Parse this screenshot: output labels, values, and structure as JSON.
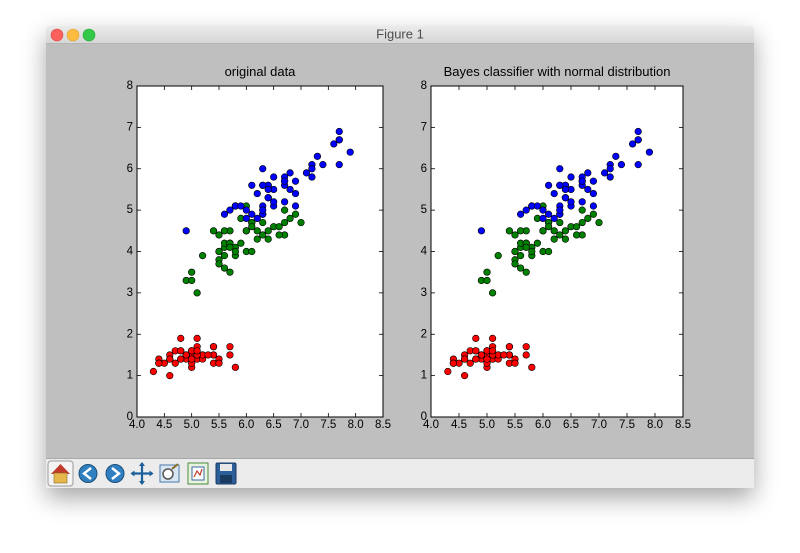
{
  "window_title": "Figure 1",
  "chart_data": [
    {
      "type": "scatter",
      "title": "original data",
      "xlim": [
        4.0,
        8.5
      ],
      "ylim": [
        0,
        8
      ],
      "xticks": [
        {
          "value": 4.0,
          "label": "4.0"
        },
        4.5,
        {
          "value": 5.0,
          "label": "5.0"
        },
        5.5,
        {
          "value": 6.0,
          "label": "6.0"
        },
        6.5,
        {
          "value": 7.0,
          "label": "7.0"
        },
        7.5,
        {
          "value": 8.0,
          "label": "8.0"
        },
        8.5
      ],
      "yticks": [
        0,
        1,
        2,
        3,
        4,
        5,
        6,
        7,
        8
      ],
      "series": [
        {
          "color": "#ff0000",
          "x": [
            5.1,
            4.9,
            4.7,
            4.6,
            5.0,
            5.4,
            4.6,
            5.0,
            4.4,
            4.9,
            5.4,
            4.8,
            4.8,
            4.3,
            5.8,
            5.7,
            5.4,
            5.1,
            5.7,
            5.1,
            5.4,
            5.1,
            4.6,
            5.1,
            4.8,
            5.0,
            5.0,
            5.2,
            5.2,
            4.7,
            4.8,
            5.4,
            5.2,
            5.5,
            4.9,
            5.0,
            5.5,
            4.9,
            4.4,
            5.1,
            5.0,
            4.5,
            4.4,
            5.0,
            5.1,
            4.8,
            5.1,
            4.6,
            5.3,
            5.0
          ],
          "y": [
            1.4,
            1.4,
            1.3,
            1.5,
            1.4,
            1.7,
            1.4,
            1.5,
            1.4,
            1.5,
            1.5,
            1.6,
            1.4,
            1.1,
            1.2,
            1.5,
            1.3,
            1.4,
            1.7,
            1.5,
            1.7,
            1.5,
            1.0,
            1.7,
            1.9,
            1.6,
            1.6,
            1.5,
            1.4,
            1.6,
            1.6,
            1.5,
            1.5,
            1.4,
            1.5,
            1.2,
            1.3,
            1.5,
            1.3,
            1.5,
            1.3,
            1.3,
            1.3,
            1.6,
            1.9,
            1.4,
            1.6,
            1.4,
            1.5,
            1.4
          ]
        },
        {
          "color": "#008000",
          "x": [
            7.0,
            6.4,
            6.9,
            5.5,
            6.5,
            5.7,
            6.3,
            4.9,
            6.6,
            5.2,
            5.0,
            5.9,
            6.0,
            6.1,
            5.6,
            6.7,
            5.6,
            5.8,
            6.2,
            5.6,
            5.9,
            6.1,
            6.3,
            6.1,
            6.4,
            6.6,
            6.8,
            6.7,
            6.0,
            5.7,
            5.5,
            5.5,
            5.8,
            6.0,
            5.4,
            6.0,
            6.7,
            6.3,
            5.6,
            5.5,
            5.5,
            6.1,
            5.8,
            5.0,
            5.6,
            5.7,
            5.7,
            6.2,
            5.1,
            5.7
          ],
          "y": [
            4.7,
            4.5,
            4.9,
            4.0,
            4.6,
            4.5,
            4.7,
            3.3,
            4.6,
            3.9,
            3.5,
            4.2,
            4.0,
            4.7,
            3.6,
            4.4,
            4.5,
            4.1,
            4.5,
            3.9,
            4.8,
            4.0,
            4.9,
            4.7,
            4.3,
            4.4,
            4.8,
            5.0,
            4.5,
            3.5,
            3.8,
            3.7,
            3.9,
            5.1,
            4.5,
            4.5,
            4.7,
            4.4,
            4.1,
            4.0,
            4.4,
            4.6,
            4.0,
            3.3,
            4.2,
            4.2,
            4.2,
            4.3,
            3.0,
            4.1
          ]
        },
        {
          "color": "#0000ff",
          "x": [
            6.3,
            5.8,
            7.1,
            6.3,
            6.5,
            7.6,
            4.9,
            7.3,
            6.7,
            7.2,
            6.5,
            6.4,
            6.8,
            5.7,
            5.8,
            6.4,
            6.5,
            7.7,
            7.7,
            6.0,
            6.9,
            5.6,
            7.7,
            6.3,
            6.7,
            7.2,
            6.2,
            6.1,
            6.4,
            7.2,
            7.4,
            7.9,
            6.4,
            6.3,
            6.1,
            7.7,
            6.3,
            6.4,
            6.0,
            6.9,
            6.7,
            6.9,
            5.8,
            6.8,
            6.7,
            6.7,
            6.3,
            6.5,
            6.2,
            5.9
          ],
          "y": [
            6.0,
            5.1,
            5.9,
            5.6,
            5.8,
            6.6,
            4.5,
            6.3,
            5.8,
            6.1,
            5.1,
            5.3,
            5.5,
            5.0,
            5.1,
            5.3,
            5.5,
            6.7,
            6.9,
            5.0,
            5.7,
            4.9,
            6.7,
            4.9,
            5.7,
            6.0,
            4.8,
            4.9,
            5.6,
            5.8,
            6.1,
            6.4,
            5.6,
            5.1,
            5.6,
            6.1,
            5.6,
            5.5,
            4.8,
            5.4,
            5.6,
            5.1,
            5.1,
            5.9,
            5.7,
            5.2,
            5.0,
            5.2,
            5.4,
            5.1
          ]
        }
      ]
    },
    {
      "type": "scatter",
      "title": "Bayes classifier with normal distribution",
      "xlim": [
        4.0,
        8.5
      ],
      "ylim": [
        0,
        8
      ],
      "xticks": [
        {
          "value": 4.0,
          "label": "4.0"
        },
        4.5,
        {
          "value": 5.0,
          "label": "5.0"
        },
        5.5,
        {
          "value": 6.0,
          "label": "6.0"
        },
        6.5,
        {
          "value": 7.0,
          "label": "7.0"
        },
        7.5,
        {
          "value": 8.0,
          "label": "8.0"
        },
        8.5
      ],
      "yticks": [
        0,
        1,
        2,
        3,
        4,
        5,
        6,
        7,
        8
      ],
      "series": [
        {
          "color": "#ff0000",
          "x": [
            5.1,
            4.9,
            4.7,
            4.6,
            5.0,
            5.4,
            4.6,
            5.0,
            4.4,
            4.9,
            5.4,
            4.8,
            4.8,
            4.3,
            5.8,
            5.7,
            5.4,
            5.1,
            5.7,
            5.1,
            5.4,
            5.1,
            4.6,
            5.1,
            4.8,
            5.0,
            5.0,
            5.2,
            5.2,
            4.7,
            4.8,
            5.4,
            5.2,
            5.5,
            4.9,
            5.0,
            5.5,
            4.9,
            4.4,
            5.1,
            5.0,
            4.5,
            4.4,
            5.0,
            5.1,
            4.8,
            5.1,
            4.6,
            5.3,
            5.0
          ],
          "y": [
            1.4,
            1.4,
            1.3,
            1.5,
            1.4,
            1.7,
            1.4,
            1.5,
            1.4,
            1.5,
            1.5,
            1.6,
            1.4,
            1.1,
            1.2,
            1.5,
            1.3,
            1.4,
            1.7,
            1.5,
            1.7,
            1.5,
            1.0,
            1.7,
            1.9,
            1.6,
            1.6,
            1.5,
            1.4,
            1.6,
            1.6,
            1.5,
            1.5,
            1.4,
            1.5,
            1.2,
            1.3,
            1.5,
            1.3,
            1.5,
            1.3,
            1.3,
            1.3,
            1.6,
            1.9,
            1.4,
            1.6,
            1.4,
            1.5,
            1.4
          ]
        },
        {
          "color": "#008000",
          "x": [
            7.0,
            6.4,
            6.9,
            5.5,
            6.5,
            5.7,
            6.3,
            4.9,
            6.6,
            5.2,
            5.0,
            5.9,
            6.0,
            6.1,
            5.6,
            6.7,
            5.6,
            5.8,
            6.2,
            5.6,
            5.9,
            6.1,
            6.3,
            6.1,
            6.4,
            6.6,
            6.8,
            6.7,
            6.0,
            5.7,
            5.5,
            5.5,
            5.8,
            6.0,
            5.4,
            6.0,
            6.7,
            6.3,
            5.6,
            5.5,
            5.5,
            6.1,
            5.8,
            5.0,
            5.6,
            5.7,
            5.7,
            6.2,
            5.1,
            5.7
          ],
          "y": [
            4.7,
            4.5,
            4.9,
            4.0,
            4.6,
            4.5,
            4.7,
            3.3,
            4.6,
            3.9,
            3.5,
            4.2,
            4.0,
            4.7,
            3.6,
            4.4,
            4.5,
            4.1,
            4.5,
            3.9,
            4.8,
            4.0,
            4.9,
            4.7,
            4.3,
            4.4,
            4.8,
            5.0,
            4.5,
            3.5,
            3.8,
            3.7,
            3.9,
            5.1,
            4.5,
            4.5,
            4.7,
            4.4,
            4.1,
            4.0,
            4.4,
            4.6,
            4.0,
            3.3,
            4.2,
            4.2,
            4.2,
            4.3,
            3.0,
            4.1
          ]
        },
        {
          "color": "#0000ff",
          "x": [
            6.3,
            5.8,
            7.1,
            6.3,
            6.5,
            7.6,
            4.9,
            7.3,
            6.7,
            7.2,
            6.5,
            6.4,
            6.8,
            5.7,
            5.8,
            6.4,
            6.5,
            7.7,
            7.7,
            6.0,
            6.9,
            5.6,
            7.7,
            6.3,
            6.7,
            7.2,
            6.2,
            6.1,
            6.4,
            7.2,
            7.4,
            7.9,
            6.4,
            6.3,
            6.1,
            7.7,
            6.3,
            6.4,
            6.0,
            6.9,
            6.7,
            6.9,
            5.8,
            6.8,
            6.7,
            6.7,
            6.3,
            6.5,
            6.2,
            5.9
          ],
          "y": [
            6.0,
            5.1,
            5.9,
            5.6,
            5.8,
            6.6,
            4.5,
            6.3,
            5.8,
            6.1,
            5.1,
            5.3,
            5.5,
            5.0,
            5.1,
            5.3,
            5.5,
            6.7,
            6.9,
            5.0,
            5.7,
            4.9,
            6.7,
            4.9,
            5.7,
            6.0,
            4.8,
            4.9,
            5.6,
            5.8,
            6.1,
            6.4,
            5.6,
            5.1,
            5.6,
            6.1,
            5.6,
            5.5,
            4.8,
            5.4,
            5.6,
            5.1,
            5.1,
            5.9,
            5.7,
            5.2,
            5.0,
            5.2,
            5.4,
            5.1
          ]
        }
      ]
    }
  ]
}
